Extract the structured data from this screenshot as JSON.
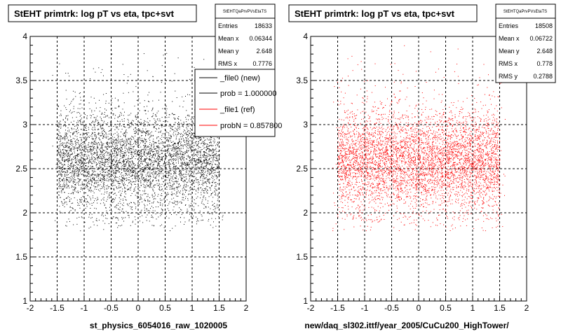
{
  "chart_data": [
    {
      "type": "scatter",
      "title": "StEHT primtrk: log pT vs eta, tpc+svt",
      "xlabel": "st_physics_6054016_raw_1020005",
      "ylabel": "",
      "xlim": [
        -2,
        2
      ],
      "ylim": [
        1,
        4
      ],
      "x_ticks": [
        "-2",
        "-1.5",
        "-1",
        "-0.5",
        "0",
        "0.5",
        "1",
        "1.5",
        "2"
      ],
      "y_ticks": [
        "1",
        "1.5",
        "2",
        "2.5",
        "3",
        "3.5",
        "4"
      ],
      "grid": true,
      "marker_color": "#000000",
      "density": {
        "x_core": [
          -1.5,
          1.5
        ],
        "y_core": [
          1.9,
          3.3
        ],
        "y_peak": 2.6,
        "x_sparse": [
          -1.6,
          1.6
        ],
        "y_sparse": [
          1.8,
          3.9
        ]
      },
      "stats": {
        "name": "StEHTQaPrvPVsEtaTS",
        "rows": [
          {
            "label": "Entries",
            "value": "18633"
          },
          {
            "label": "Mean x",
            "value": "0.06344"
          },
          {
            "label": "Mean y",
            "value": "2.648"
          },
          {
            "label": "RMS x",
            "value": "0.7776"
          }
        ]
      },
      "legend": [
        {
          "label": "_file0 (new)",
          "color": "#000000"
        },
        {
          "label": "prob = 1.000000",
          "color": "#000000"
        },
        {
          "label": "_file1 (ref)",
          "color": "#ff0000"
        },
        {
          "label": "probN = 0.857800",
          "color": "#ff0000"
        }
      ]
    },
    {
      "type": "scatter",
      "title": "StEHT primtrk: log pT vs eta, tpc+svt",
      "xlabel": "new/daq_sl302.ittf/year_2005/CuCu200_HighTower/",
      "ylabel": "",
      "xlim": [
        -2,
        2
      ],
      "ylim": [
        1,
        4
      ],
      "x_ticks": [
        "-2",
        "-1.5",
        "-1",
        "-0.5",
        "0",
        "0.5",
        "1",
        "1.5",
        "2"
      ],
      "y_ticks": [
        "1",
        "1.5",
        "2",
        "2.5",
        "3",
        "3.5",
        "4"
      ],
      "grid": true,
      "marker_color": "#ff0000",
      "density": {
        "x_core": [
          -1.5,
          1.5
        ],
        "y_core": [
          1.9,
          3.3
        ],
        "y_peak": 2.6,
        "x_sparse": [
          -1.6,
          1.6
        ],
        "y_sparse": [
          1.8,
          3.9
        ]
      },
      "stats": {
        "name": "StEHTQaPrvPVsEtaTS",
        "rows": [
          {
            "label": "Entries",
            "value": "18508"
          },
          {
            "label": "Mean x",
            "value": "0.06722"
          },
          {
            "label": "Mean y",
            "value": "2.648"
          },
          {
            "label": "RMS x",
            "value": "0.778"
          },
          {
            "label": "RMS y",
            "value": "0.2788"
          }
        ]
      }
    }
  ]
}
